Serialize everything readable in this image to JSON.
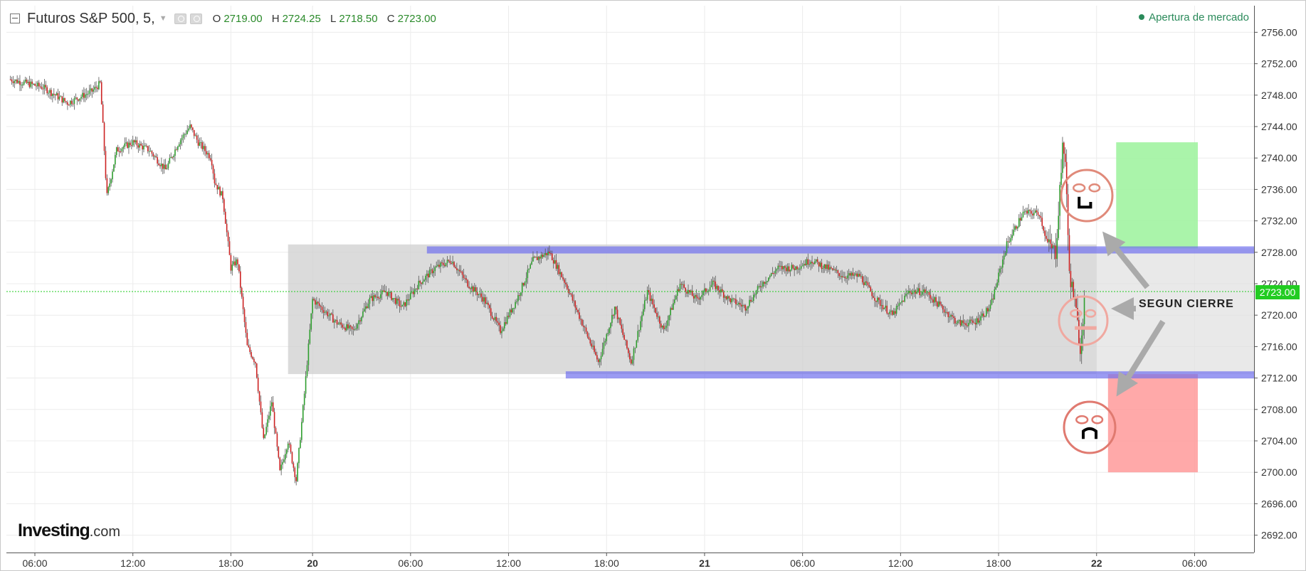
{
  "header": {
    "symbol": "Futuros S&P 500, 5,",
    "ohlc": [
      {
        "key": "O",
        "value": "2719.00"
      },
      {
        "key": "H",
        "value": "2724.25"
      },
      {
        "key": "L",
        "value": "2718.50"
      },
      {
        "key": "C",
        "value": "2723.00"
      }
    ],
    "status": "Apertura de mercado"
  },
  "logo": {
    "name": "Investing",
    "suffix": ".com"
  },
  "annotations": {
    "label": "SEGUN CIERRE"
  },
  "colors": {
    "up": "#2e9e2e",
    "down": "#cc2222",
    "wick": "#555555",
    "range_box": "#cfcfcf",
    "level_line": "#7070ee",
    "bull_box": "#9bf29b",
    "bear_box": "#ff9a9a",
    "last_price": "#22cc22"
  },
  "chart_data": {
    "type": "candlestick",
    "title": "Futuros S&P 500, 5,",
    "y_ticks": [
      "2756.00",
      "2752.00",
      "2748.00",
      "2744.00",
      "2740.00",
      "2736.00",
      "2732.00",
      "2728.00",
      "2724.00",
      "2720.00",
      "2716.00",
      "2712.00",
      "2708.00",
      "2704.00",
      "2700.00",
      "2696.00",
      "2692.00"
    ],
    "ylim": [
      2690,
      2758
    ],
    "x_ticks": [
      {
        "label": "06:00",
        "t": 0
      },
      {
        "label": "12:00",
        "t": 6
      },
      {
        "label": "18:00",
        "t": 12
      },
      {
        "label": "20",
        "t": 17
      },
      {
        "label": "06:00",
        "t": 23
      },
      {
        "label": "12:00",
        "t": 29
      },
      {
        "label": "18:00",
        "t": 35
      },
      {
        "label": "21",
        "t": 41
      },
      {
        "label": "06:00",
        "t": 47
      },
      {
        "label": "12:00",
        "t": 53
      },
      {
        "label": "18:00",
        "t": 59
      },
      {
        "label": "22",
        "t": 65
      },
      {
        "label": "06:00",
        "t": 71
      }
    ],
    "time_unit": "hours after the first 06:00 tick",
    "xlim": [
      -1.5,
      76.5
    ],
    "last_price": "2723.00",
    "price_path": [
      [
        -1.5,
        2750
      ],
      [
        0.5,
        2749
      ],
      [
        2,
        2747
      ],
      [
        3.5,
        2748.5
      ],
      [
        4,
        2749.5
      ],
      [
        4.2,
        2743
      ],
      [
        4.4,
        2735
      ],
      [
        5,
        2741
      ],
      [
        6,
        2742
      ],
      [
        7,
        2741
      ],
      [
        8,
        2738.5
      ],
      [
        8.8,
        2742
      ],
      [
        9.5,
        2744
      ],
      [
        10,
        2742
      ],
      [
        10.8,
        2740
      ],
      [
        11,
        2737
      ],
      [
        11.5,
        2735
      ],
      [
        12,
        2726
      ],
      [
        12.4,
        2727
      ],
      [
        13,
        2716
      ],
      [
        13.5,
        2714
      ],
      [
        14,
        2704
      ],
      [
        14.5,
        2709
      ],
      [
        15,
        2700
      ],
      [
        15.5,
        2704
      ],
      [
        16,
        2699
      ],
      [
        16.5,
        2710
      ],
      [
        17,
        2722
      ],
      [
        17.5,
        2721
      ],
      [
        18.5,
        2719
      ],
      [
        19.5,
        2718
      ],
      [
        20.5,
        2722
      ],
      [
        21.5,
        2723
      ],
      [
        22.5,
        2721
      ],
      [
        23.5,
        2724
      ],
      [
        24.5,
        2726
      ],
      [
        25.5,
        2727
      ],
      [
        26.5,
        2724
      ],
      [
        27.5,
        2722
      ],
      [
        28.5,
        2718
      ],
      [
        29.5,
        2722
      ],
      [
        30.5,
        2727
      ],
      [
        31.5,
        2728
      ],
      [
        32.5,
        2724
      ],
      [
        33.5,
        2719
      ],
      [
        34.5,
        2714
      ],
      [
        35.5,
        2721
      ],
      [
        36.5,
        2714
      ],
      [
        37.5,
        2723
      ],
      [
        38.5,
        2718
      ],
      [
        39.5,
        2724
      ],
      [
        40.5,
        2722
      ],
      [
        41.5,
        2724
      ],
      [
        42.5,
        2722
      ],
      [
        43.5,
        2721
      ],
      [
        44.5,
        2724
      ],
      [
        45.5,
        2726
      ],
      [
        46.5,
        2726
      ],
      [
        47.5,
        2727
      ],
      [
        48.5,
        2726
      ],
      [
        49.5,
        2725
      ],
      [
        50.5,
        2725
      ],
      [
        51.5,
        2722
      ],
      [
        52.5,
        2720
      ],
      [
        53.5,
        2723
      ],
      [
        54.5,
        2723
      ],
      [
        55.5,
        2721
      ],
      [
        56.5,
        2719
      ],
      [
        57.5,
        2719
      ],
      [
        58.5,
        2721
      ],
      [
        59.5,
        2729
      ],
      [
        60.5,
        2733
      ],
      [
        61.5,
        2733
      ],
      [
        62,
        2729
      ],
      [
        62.5,
        2728
      ],
      [
        62.9,
        2741
      ],
      [
        63.1,
        2740
      ],
      [
        63.3,
        2726
      ],
      [
        63.7,
        2721
      ],
      [
        64,
        2716
      ],
      [
        64.3,
        2723
      ]
    ],
    "series": [
      {
        "name": "range",
        "type": "box",
        "x": [
          15.5,
          65
        ],
        "y": [
          2712.5,
          2729
        ]
      },
      {
        "name": "range_extension",
        "type": "box",
        "x": [
          65,
          76.5
        ],
        "y": [
          2712.5,
          2728.5
        ]
      },
      {
        "name": "resistance",
        "type": "hline",
        "y": 2728.3,
        "x": [
          24,
          76.3
        ]
      },
      {
        "name": "support",
        "type": "hline",
        "y": 2712.4,
        "x": [
          32.5,
          76.5
        ]
      },
      {
        "name": "bull_zone",
        "type": "box",
        "x": [
          66.2,
          71.2
        ],
        "y": [
          2728.5,
          2742
        ]
      },
      {
        "name": "bear_zone",
        "type": "box",
        "x": [
          65.7,
          71.2
        ],
        "y": [
          2700,
          2712.5
        ]
      }
    ],
    "grid": true,
    "legend": "none"
  }
}
